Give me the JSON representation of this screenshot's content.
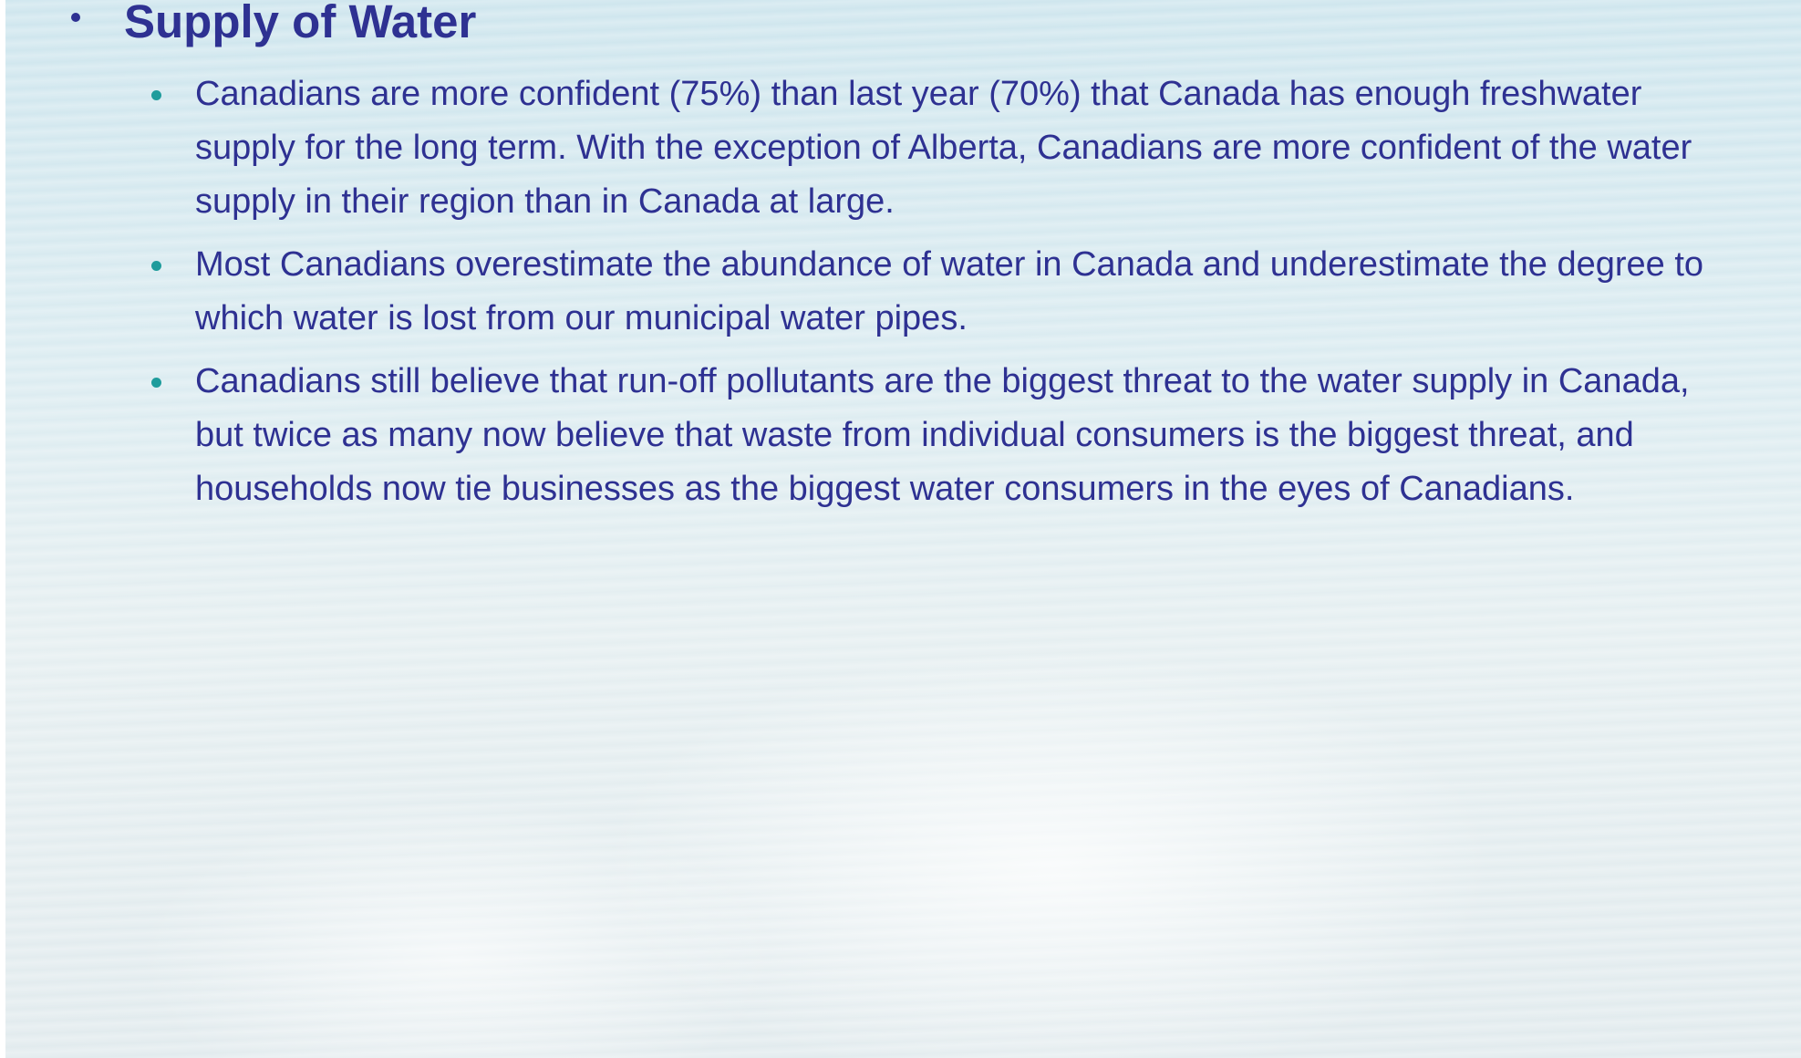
{
  "heading": "Supply of Water",
  "bullets": [
    "Canadians are more confident (75%) than last year (70%) that Canada has enough freshwater supply for the long term. With the exception of Alberta, Canadians are more confident of the water supply in their region than in Canada at large.",
    "Most Canadians overestimate the abundance of water in Canada and underestimate the degree to which water is lost from our municipal water pipes.",
    "Canadians still believe that run-off pollutants are the biggest threat to the water supply in Canada, but twice as many now believe that waste from individual consumers is the biggest threat, and households now tie businesses as the biggest water consumers in the eyes of Canadians."
  ]
}
